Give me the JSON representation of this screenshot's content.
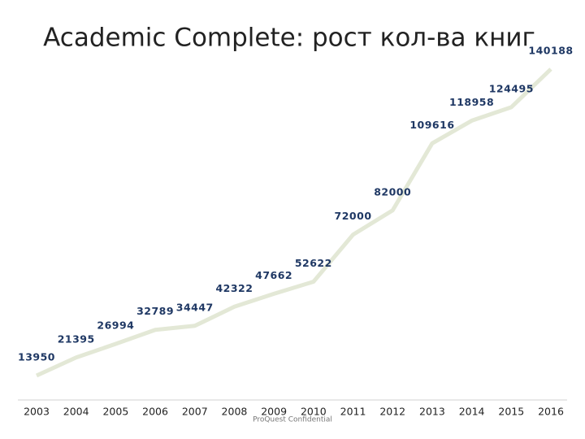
{
  "chart_data": {
    "type": "line",
    "title": "Academic Complete: рост кол-ва книг",
    "categories": [
      "2003",
      "2004",
      "2005",
      "2006",
      "2007",
      "2008",
      "2009",
      "2010",
      "2011",
      "2012",
      "2013",
      "2014",
      "2015",
      "2016"
    ],
    "values": [
      13950,
      21395,
      26994,
      32789,
      34447,
      42322,
      47662,
      52622,
      72000,
      82000,
      109616,
      118958,
      124495,
      140188
    ],
    "color": "#e3e8d6",
    "label_color": "#1f3864",
    "footer": "ProQuest Confidential"
  }
}
